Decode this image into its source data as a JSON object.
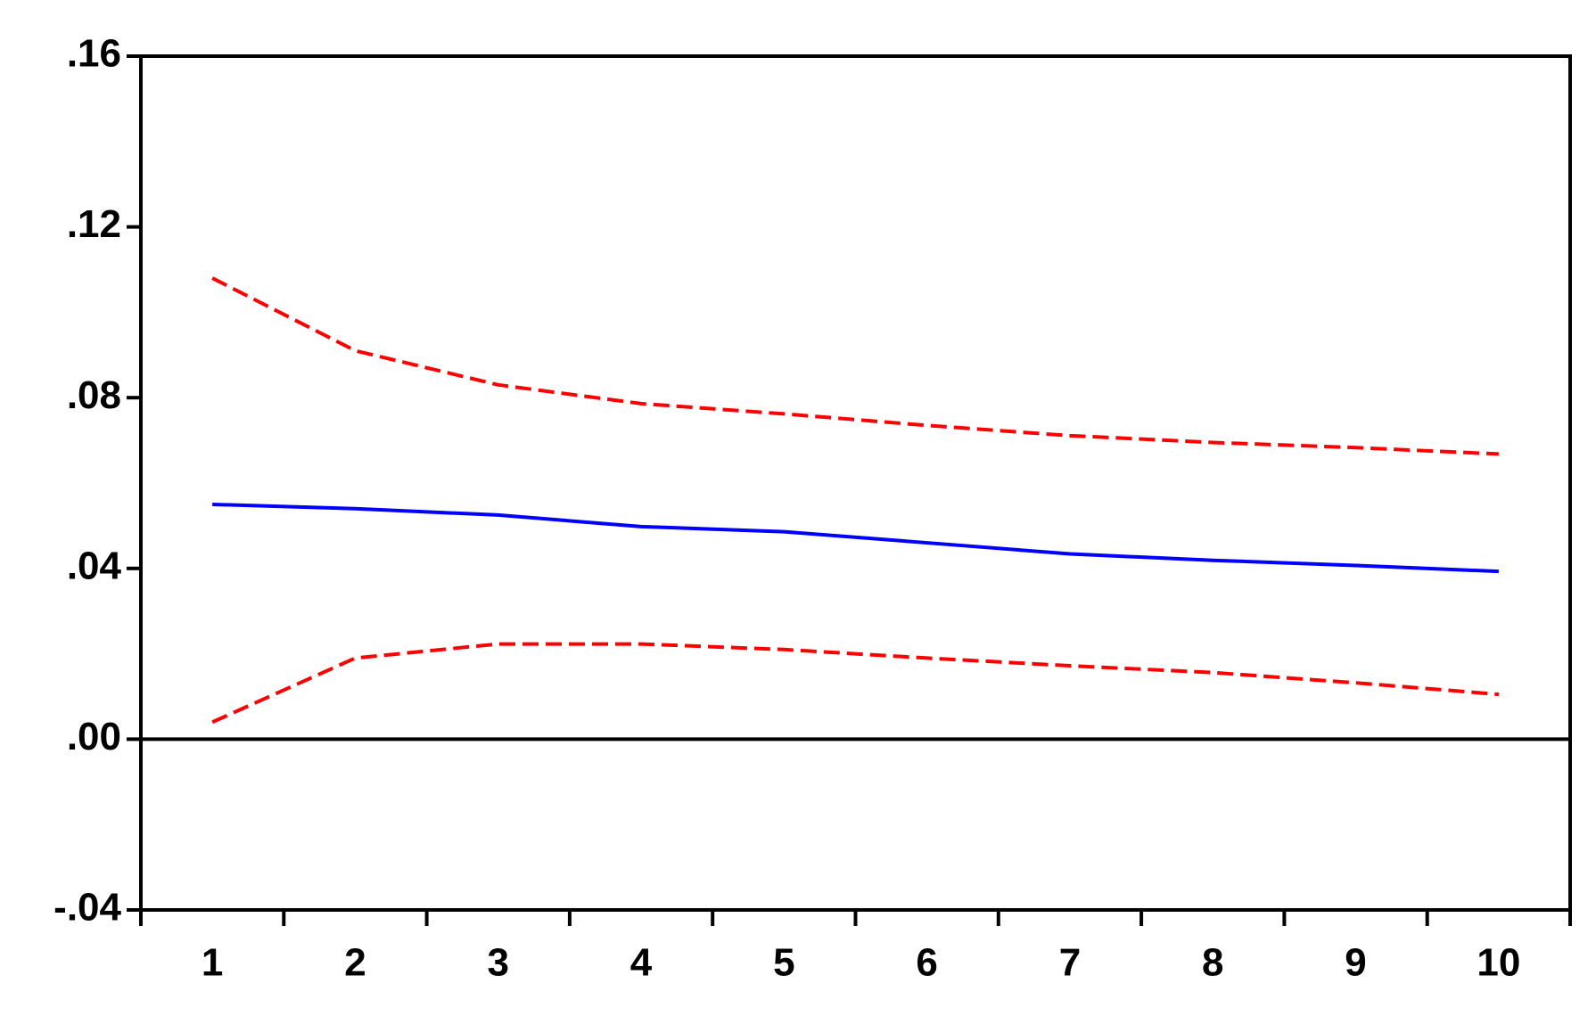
{
  "chart_data": {
    "type": "line",
    "categories": [
      "1",
      "2",
      "3",
      "4",
      "5",
      "6",
      "7",
      "8",
      "9",
      "10"
    ],
    "series": [
      {
        "color": "#0000ff",
        "dashed": false,
        "values": [
          0.055,
          0.054,
          0.0525,
          0.0498,
          0.0486,
          0.046,
          0.0434,
          0.0419,
          0.0407,
          0.0393
        ]
      },
      {
        "color": "#ff0000",
        "dashed": true,
        "values": [
          0.108,
          0.091,
          0.083,
          0.0786,
          0.0762,
          0.0735,
          0.0711,
          0.0695,
          0.0683,
          0.0668
        ]
      },
      {
        "color": "#ff0000",
        "dashed": true,
        "values": [
          0.004,
          0.019,
          0.0223,
          0.0223,
          0.021,
          0.019,
          0.0172,
          0.0156,
          0.0132,
          0.0105
        ]
      }
    ],
    "ylim": [
      -0.04,
      0.16
    ],
    "yticks": [
      {
        "value": -0.04,
        "label": "-.04"
      },
      {
        "value": 0,
        "label": ".00"
      },
      {
        "value": 0.04,
        "label": ".04"
      },
      {
        "value": 0.08,
        "label": ".08"
      },
      {
        "value": 0.12,
        "label": ".12"
      },
      {
        "value": 0.16,
        "label": ".16"
      }
    ],
    "zero_line": true
  }
}
